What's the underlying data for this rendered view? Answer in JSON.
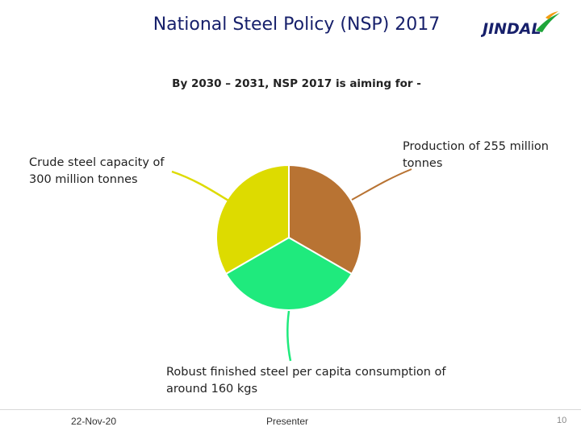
{
  "slide": {
    "title": "National Steel Policy (NSP) 2017",
    "subtitle": "By 2030 – 2031, NSP 2017 is aiming for -"
  },
  "logo": {
    "text": "JINDAL",
    "color": "#17206b",
    "accent_color": "#1fa53a",
    "accent_color_2": "#f39c12"
  },
  "targets": [
    {
      "label": "Crude steel capacity of 300 million tonnes",
      "color": "#dddb00"
    },
    {
      "label": "Production of 255 million tonnes",
      "color": "#b87333"
    },
    {
      "label": "Robust finished steel per capita consumption of around 160 kgs",
      "color": "#1fea7d"
    }
  ],
  "footer": {
    "date": "22-Nov-20",
    "presenter": "Presenter",
    "page": "10"
  }
}
